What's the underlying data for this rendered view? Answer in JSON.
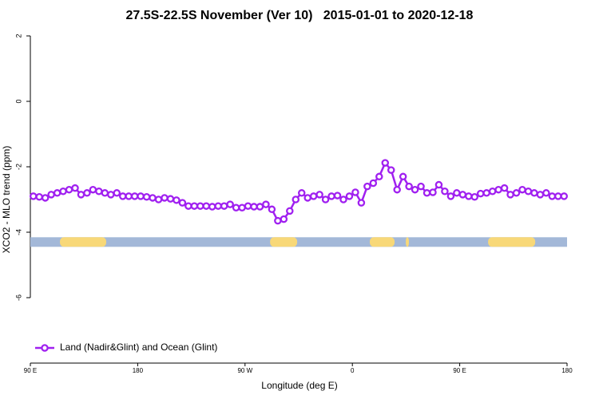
{
  "chart_data": {
    "type": "line",
    "title": "27.5S-22.5S November (Ver 10)   2015-01-01 to 2020-12-18",
    "x_label": "Longitude (deg E)",
    "y_label": "XCO2 - MLO trend (ppm)",
    "xlim": [
      90,
      540
    ],
    "ylim": [
      -8,
      2.2
    ],
    "xticks": [
      {
        "value": 90,
        "label": "90 E"
      },
      {
        "value": 180,
        "label": "180"
      },
      {
        "value": 270,
        "label": "90 W"
      },
      {
        "value": 360,
        "label": "0"
      },
      {
        "value": 450,
        "label": "90 E"
      },
      {
        "value": 540,
        "label": "180"
      }
    ],
    "yticks": [
      2,
      0,
      -2,
      -4,
      -6
    ],
    "legend_position": "bottom-left",
    "x": [
      92.5,
      97.5,
      102.5,
      107.5,
      112.5,
      117.5,
      122.5,
      127.5,
      132.5,
      137.5,
      142.5,
      147.5,
      152.5,
      157.5,
      162.5,
      167.5,
      172.5,
      177.5,
      182.5,
      187.5,
      192.5,
      197.5,
      202.5,
      207.5,
      212.5,
      217.5,
      222.5,
      227.5,
      232.5,
      237.5,
      242.5,
      247.5,
      252.5,
      257.5,
      262.5,
      267.5,
      272.5,
      277.5,
      282.5,
      287.5,
      292.5,
      297.5,
      302.5,
      307.5,
      312.5,
      317.5,
      322.5,
      327.5,
      332.5,
      337.5,
      342.5,
      347.5,
      352.5,
      357.5,
      362.5,
      367.5,
      372.5,
      377.5,
      382.5,
      387.5,
      392.5,
      397.5,
      402.5,
      407.5,
      412.5,
      417.5,
      422.5,
      427.5,
      432.5,
      437.5,
      442.5,
      447.5,
      452.5,
      457.5,
      462.5,
      467.5,
      472.5,
      477.5,
      482.5,
      487.5,
      492.5,
      497.5,
      502.5,
      507.5,
      512.5,
      517.5,
      522.5,
      527.5,
      532.5,
      537.5
    ],
    "series": [
      {
        "name": "Land (Nadir&Glint) and Ocean (Glint)",
        "color": "#a020f0",
        "values": [
          -2.9,
          -2.92,
          -2.95,
          -2.85,
          -2.8,
          -2.75,
          -2.7,
          -2.65,
          -2.85,
          -2.8,
          -2.7,
          -2.75,
          -2.8,
          -2.85,
          -2.8,
          -2.9,
          -2.9,
          -2.9,
          -2.9,
          -2.92,
          -2.95,
          -3.0,
          -2.95,
          -2.98,
          -3.02,
          -3.1,
          -3.2,
          -3.2,
          -3.2,
          -3.2,
          -3.22,
          -3.2,
          -3.2,
          -3.15,
          -3.25,
          -3.25,
          -3.2,
          -3.22,
          -3.22,
          -3.15,
          -3.3,
          -3.65,
          -3.6,
          -3.35,
          -3.0,
          -2.8,
          -2.95,
          -2.9,
          -2.85,
          -3.0,
          -2.9,
          -2.88,
          -3.0,
          -2.9,
          -2.78,
          -3.1,
          -2.6,
          -2.5,
          -2.3,
          -1.88,
          -2.1,
          -2.7,
          -2.3,
          -2.6,
          -2.7,
          -2.6,
          -2.8,
          -2.78,
          -2.55,
          -2.75,
          -2.9,
          -2.8,
          -2.85,
          -2.9,
          -2.92,
          -2.82,
          -2.8,
          -2.75,
          -2.7,
          -2.65,
          -2.85,
          -2.8,
          -2.7,
          -2.75,
          -2.8,
          -2.85,
          -2.8,
          -2.9,
          -2.9,
          -2.9
        ]
      }
    ],
    "surface_band": {
      "y": -4.3,
      "ocean_color": "#a3b8d8",
      "land_color": "#f8d878",
      "land": [
        [
          114.8,
          153.6
        ],
        [
          291,
          313.7
        ],
        [
          374.6,
          395.4
        ],
        [
          404.8,
          407.4
        ],
        [
          473.8,
          513.3
        ]
      ]
    }
  }
}
